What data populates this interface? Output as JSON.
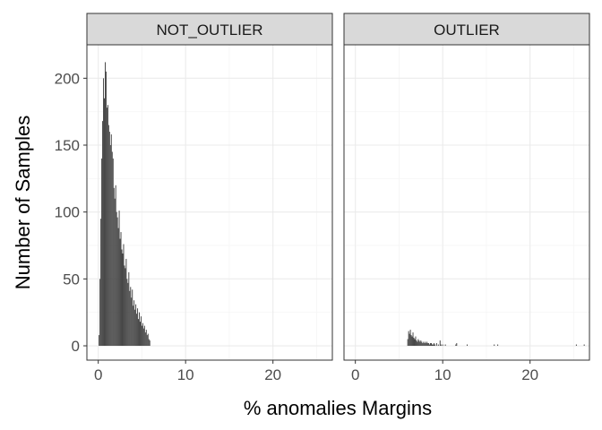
{
  "chart_data": {
    "type": "bar",
    "subtype": "faceted-histogram",
    "xlabel": "%  anomalies Margins",
    "ylabel": "Number of Samples",
    "xlim": [
      -1.3,
      26.8
    ],
    "ylim": [
      -10.7,
      225
    ],
    "x_ticks": [
      0,
      10,
      20
    ],
    "y_ticks": [
      0,
      50,
      100,
      150,
      200
    ],
    "grid": true,
    "bin_width": 0.1,
    "colors": {
      "bar": "#474747",
      "panel_border": "#333333",
      "strip_fill": "#d9d9d9",
      "grid_major": "#ebebeb",
      "grid_minor": "#f5f5f5"
    },
    "facets": [
      {
        "label": "NOT_OUTLIER",
        "bins": [
          [
            0.1,
            8
          ],
          [
            0.2,
            50
          ],
          [
            0.3,
            95
          ],
          [
            0.4,
            140
          ],
          [
            0.5,
            168
          ],
          [
            0.6,
            200
          ],
          [
            0.7,
            185
          ],
          [
            0.8,
            212
          ],
          [
            0.9,
            205
          ],
          [
            1.0,
            178
          ],
          [
            1.1,
            180
          ],
          [
            1.2,
            165
          ],
          [
            1.3,
            160
          ],
          [
            1.4,
            150
          ],
          [
            1.5,
            158
          ],
          [
            1.6,
            145
          ],
          [
            1.7,
            140
          ],
          [
            1.8,
            118
          ],
          [
            1.9,
            110
          ],
          [
            2.0,
            120
          ],
          [
            2.1,
            100
          ],
          [
            2.2,
            96
          ],
          [
            2.3,
            88
          ],
          [
            2.4,
            101
          ],
          [
            2.5,
            80
          ],
          [
            2.6,
            85
          ],
          [
            2.7,
            72
          ],
          [
            2.8,
            69
          ],
          [
            2.9,
            76
          ],
          [
            3.0,
            60
          ],
          [
            3.1,
            58
          ],
          [
            3.2,
            65
          ],
          [
            3.3,
            50
          ],
          [
            3.4,
            47
          ],
          [
            3.5,
            55
          ],
          [
            3.6,
            41
          ],
          [
            3.7,
            44
          ],
          [
            3.8,
            36
          ],
          [
            3.9,
            42
          ],
          [
            4.0,
            30
          ],
          [
            4.1,
            34
          ],
          [
            4.2,
            27
          ],
          [
            4.3,
            31
          ],
          [
            4.4,
            24
          ],
          [
            4.5,
            28
          ],
          [
            4.6,
            20
          ],
          [
            4.7,
            25
          ],
          [
            4.8,
            18
          ],
          [
            4.9,
            22
          ],
          [
            5.0,
            15
          ],
          [
            5.1,
            17
          ],
          [
            5.2,
            13
          ],
          [
            5.3,
            15
          ],
          [
            5.4,
            10
          ],
          [
            5.5,
            12
          ],
          [
            5.6,
            8
          ],
          [
            5.7,
            9
          ],
          [
            5.8,
            5
          ],
          [
            5.9,
            4
          ]
        ]
      },
      {
        "label": "OUTLIER",
        "bins": [
          [
            6.0,
            5
          ],
          [
            6.1,
            11
          ],
          [
            6.2,
            9
          ],
          [
            6.3,
            12
          ],
          [
            6.4,
            8
          ],
          [
            6.5,
            7
          ],
          [
            6.6,
            10
          ],
          [
            6.7,
            6
          ],
          [
            6.8,
            5
          ],
          [
            6.9,
            7
          ],
          [
            7.0,
            4
          ],
          [
            7.1,
            3
          ],
          [
            7.2,
            5
          ],
          [
            7.3,
            4
          ],
          [
            7.4,
            3
          ],
          [
            7.5,
            4
          ],
          [
            7.6,
            3
          ],
          [
            7.7,
            2
          ],
          [
            7.8,
            3
          ],
          [
            7.9,
            2
          ],
          [
            8.0,
            3
          ],
          [
            8.1,
            2
          ],
          [
            8.2,
            3
          ],
          [
            8.3,
            2
          ],
          [
            8.4,
            2
          ],
          [
            8.5,
            1
          ],
          [
            8.6,
            2
          ],
          [
            8.7,
            2
          ],
          [
            8.8,
            1
          ],
          [
            8.9,
            1
          ],
          [
            9.0,
            2
          ],
          [
            9.1,
            1
          ],
          [
            9.3,
            2
          ],
          [
            9.5,
            1
          ],
          [
            9.7,
            4
          ],
          [
            9.8,
            1
          ],
          [
            10.0,
            1
          ],
          [
            10.3,
            1
          ],
          [
            11.5,
            1
          ],
          [
            11.6,
            2
          ],
          [
            12.8,
            1
          ],
          [
            15.9,
            1
          ],
          [
            16.3,
            1
          ],
          [
            25.3,
            1
          ],
          [
            26.2,
            1
          ]
        ]
      }
    ]
  }
}
